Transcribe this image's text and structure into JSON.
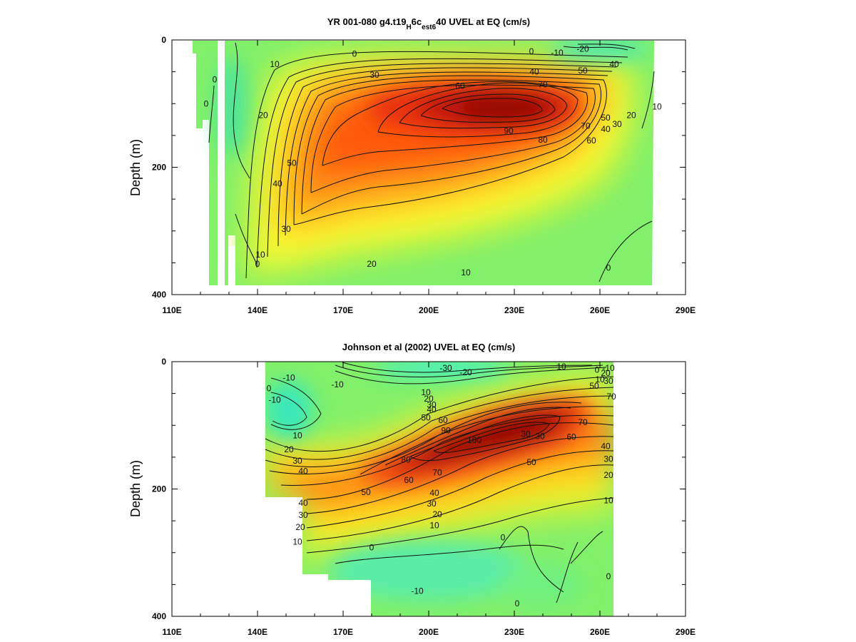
{
  "chart_data": [
    {
      "type": "heatmap",
      "title": "YR 001-080 g4.t19_H_6c_est6_40 UVEL at EQ (cm/s)",
      "title_parts": {
        "a": "YR 001-080 g4.t19",
        "b": "H",
        "c": "6c",
        "d": "est6",
        "e": "40"
      },
      "ylabel": "Depth (m)",
      "xlabel": "",
      "xlim": [
        110,
        290
      ],
      "ylim": [
        400,
        0
      ],
      "x_tick_labels": [
        "110E",
        "140E",
        "170E",
        "200E",
        "230E",
        "260E",
        "290E"
      ],
      "y_tick_labels": [
        "0",
        "200",
        "400"
      ],
      "colormap": "rainbow (cyan = negative, red = strong eastward)",
      "features": [
        {
          "name": "core",
          "lon": 228,
          "depth": 110,
          "value": 90
        },
        {
          "name": "surface westward flow",
          "lon": 248,
          "depth": 20,
          "value": -20
        }
      ],
      "contour_labels": [
        {
          "text": "0",
          "lon": 236,
          "depth": 18
        },
        {
          "text": "-10",
          "lon": 245,
          "depth": 20
        },
        {
          "text": "-20",
          "lon": 254,
          "depth": 14
        },
        {
          "text": "0",
          "lon": 174,
          "depth": 22
        },
        {
          "text": "10",
          "lon": 146,
          "depth": 38
        },
        {
          "text": "30",
          "lon": 181,
          "depth": 55
        },
        {
          "text": "60",
          "lon": 211,
          "depth": 72
        },
        {
          "text": "40",
          "lon": 237,
          "depth": 50
        },
        {
          "text": "70",
          "lon": 240,
          "depth": 70
        },
        {
          "text": "90",
          "lon": 228,
          "depth": 143
        },
        {
          "text": "80",
          "lon": 240,
          "depth": 157
        },
        {
          "text": "60",
          "lon": 257,
          "depth": 158
        },
        {
          "text": "50",
          "lon": 254,
          "depth": 48
        },
        {
          "text": "40",
          "lon": 265,
          "depth": 38
        },
        {
          "text": "70",
          "lon": 255,
          "depth": 135
        },
        {
          "text": "50",
          "lon": 262,
          "depth": 122
        },
        {
          "text": "40",
          "lon": 262,
          "depth": 140
        },
        {
          "text": "30",
          "lon": 266,
          "depth": 132
        },
        {
          "text": "20",
          "lon": 271,
          "depth": 118
        },
        {
          "text": "10",
          "lon": 280,
          "depth": 105
        },
        {
          "text": "0",
          "lon": 125,
          "depth": 62
        },
        {
          "text": "0",
          "lon": 122,
          "depth": 100
        },
        {
          "text": "20",
          "lon": 142,
          "depth": 118
        },
        {
          "text": "50",
          "lon": 152,
          "depth": 193
        },
        {
          "text": "40",
          "lon": 147,
          "depth": 226
        },
        {
          "text": "30",
          "lon": 150,
          "depth": 297
        },
        {
          "text": "10",
          "lon": 141,
          "depth": 337
        },
        {
          "text": "0",
          "lon": 140,
          "depth": 352
        },
        {
          "text": "20",
          "lon": 180,
          "depth": 352
        },
        {
          "text": "10",
          "lon": 213,
          "depth": 365
        },
        {
          "text": "0",
          "lon": 263,
          "depth": 358
        }
      ]
    },
    {
      "type": "heatmap",
      "title": "Johnson et al (2002) UVEL at EQ (cm/s)",
      "ylabel": "Depth (m)",
      "xlabel": "",
      "xlim": [
        110,
        290
      ],
      "ylim": [
        400,
        0
      ],
      "x_tick_labels": [
        "110E",
        "140E",
        "170E",
        "200E",
        "230E",
        "260E",
        "290E"
      ],
      "y_tick_labels": [
        "0",
        "200",
        "400"
      ],
      "colormap": "rainbow (cyan = negative, red = strong eastward)",
      "features": [
        {
          "name": "core",
          "lon": 218,
          "depth": 120,
          "value": 100
        },
        {
          "name": "surface westward flow",
          "lon": 205,
          "depth": 12,
          "value": -30
        }
      ],
      "contour_labels": [
        {
          "text": "-30",
          "lon": 206,
          "depth": 10
        },
        {
          "text": "-20",
          "lon": 213,
          "depth": 17
        },
        {
          "text": "-10",
          "lon": 246,
          "depth": 8
        },
        {
          "text": "0",
          "lon": 259,
          "depth": 13
        },
        {
          "text": "-10",
          "lon": 263,
          "depth": 10
        },
        {
          "text": "10",
          "lon": 260,
          "depth": 28
        },
        {
          "text": "20",
          "lon": 262,
          "depth": 18
        },
        {
          "text": "30",
          "lon": 263,
          "depth": 30
        },
        {
          "text": "50",
          "lon": 258,
          "depth": 38
        },
        {
          "text": "70",
          "lon": 264,
          "depth": 55
        },
        {
          "text": "-10",
          "lon": 168,
          "depth": 36
        },
        {
          "text": "-10",
          "lon": 151,
          "depth": 25
        },
        {
          "text": "0",
          "lon": 144,
          "depth": 42
        },
        {
          "text": "-10",
          "lon": 146,
          "depth": 60
        },
        {
          "text": "10",
          "lon": 199,
          "depth": 48
        },
        {
          "text": "20",
          "lon": 200,
          "depth": 58
        },
        {
          "text": "30",
          "lon": 201,
          "depth": 68
        },
        {
          "text": "40",
          "lon": 201,
          "depth": 75
        },
        {
          "text": "50",
          "lon": 199,
          "depth": 88
        },
        {
          "text": "60",
          "lon": 205,
          "depth": 92
        },
        {
          "text": "90",
          "lon": 206,
          "depth": 108
        },
        {
          "text": "100",
          "lon": 216,
          "depth": 123
        },
        {
          "text": "80",
          "lon": 192,
          "depth": 154
        },
        {
          "text": "70",
          "lon": 203,
          "depth": 174
        },
        {
          "text": "60",
          "lon": 193,
          "depth": 186
        },
        {
          "text": "50",
          "lon": 178,
          "depth": 205
        },
        {
          "text": "40",
          "lon": 202,
          "depth": 206
        },
        {
          "text": "30",
          "lon": 201,
          "depth": 223
        },
        {
          "text": "20",
          "lon": 203,
          "depth": 240
        },
        {
          "text": "10",
          "lon": 202,
          "depth": 257
        },
        {
          "text": "30",
          "lon": 234,
          "depth": 114
        },
        {
          "text": "30",
          "lon": 239,
          "depth": 117
        },
        {
          "text": "60",
          "lon": 250,
          "depth": 118
        },
        {
          "text": "70",
          "lon": 254,
          "depth": 95
        },
        {
          "text": "50",
          "lon": 236,
          "depth": 158
        },
        {
          "text": "40",
          "lon": 262,
          "depth": 133
        },
        {
          "text": "30",
          "lon": 263,
          "depth": 153
        },
        {
          "text": "20",
          "lon": 263,
          "depth": 178
        },
        {
          "text": "10",
          "lon": 263,
          "depth": 218
        },
        {
          "text": "10",
          "lon": 154,
          "depth": 116
        },
        {
          "text": "20",
          "lon": 151,
          "depth": 138
        },
        {
          "text": "30",
          "lon": 154,
          "depth": 156
        },
        {
          "text": "40",
          "lon": 156,
          "depth": 172
        },
        {
          "text": "40",
          "lon": 156,
          "depth": 222
        },
        {
          "text": "30",
          "lon": 156,
          "depth": 241
        },
        {
          "text": "20",
          "lon": 155,
          "depth": 260
        },
        {
          "text": "10",
          "lon": 154,
          "depth": 283
        },
        {
          "text": "0",
          "lon": 180,
          "depth": 292
        },
        {
          "text": "0",
          "lon": 226,
          "depth": 276
        },
        {
          "text": "0",
          "lon": 263,
          "depth": 337
        },
        {
          "text": "0",
          "lon": 231,
          "depth": 380
        },
        {
          "text": "-10",
          "lon": 196,
          "depth": 360
        }
      ]
    }
  ]
}
